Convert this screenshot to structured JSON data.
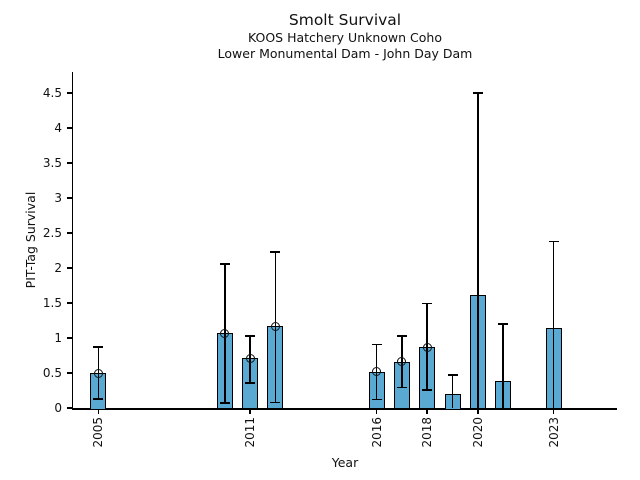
{
  "chart_data": {
    "type": "bar",
    "title": "Smolt Survival",
    "subtitle1": "KOOS Hatchery Unknown Coho",
    "subtitle2": "Lower Monumental Dam - John Day Dam",
    "xlabel": "Year",
    "ylabel": "PIT-Tag Survival",
    "xlim": [
      2004,
      2025.5
    ],
    "ylim": [
      0,
      4.8
    ],
    "yticks": [
      0,
      0.5,
      1,
      1.5,
      2,
      2.5,
      3,
      3.5,
      4,
      4.5
    ],
    "xticks": [
      2005,
      2011,
      2016,
      2018,
      2020,
      2023
    ],
    "grid": false,
    "legend": false,
    "bar_color": "#5AA9D2",
    "bar_edge_color": "#000000",
    "error_bar_color": "#000000",
    "series": [
      {
        "name": "PIT-Tag Survival",
        "points": [
          {
            "year": 2005,
            "value": 0.5,
            "ci_low": 0.13,
            "ci_high": 0.87,
            "marker": true
          },
          {
            "year": 2010,
            "value": 1.07,
            "ci_low": 0.07,
            "ci_high": 2.06,
            "marker": true
          },
          {
            "year": 2011,
            "value": 0.71,
            "ci_low": 0.36,
            "ci_high": 1.03,
            "marker": true
          },
          {
            "year": 2012,
            "value": 1.17,
            "ci_low": 0.08,
            "ci_high": 2.23,
            "marker": true
          },
          {
            "year": 2016,
            "value": 0.52,
            "ci_low": 0.12,
            "ci_high": 0.91,
            "marker": true
          },
          {
            "year": 2017,
            "value": 0.66,
            "ci_low": 0.29,
            "ci_high": 1.03,
            "marker": true
          },
          {
            "year": 2018,
            "value": 0.87,
            "ci_low": 0.26,
            "ci_high": 1.49,
            "marker": true
          },
          {
            "year": 2019,
            "value": 0.2,
            "ci_low": 0.0,
            "ci_high": 0.47,
            "marker": false
          },
          {
            "year": 2020,
            "value": 1.61,
            "ci_low": 0.0,
            "ci_high": 4.5,
            "marker": false
          },
          {
            "year": 2021,
            "value": 0.39,
            "ci_low": 0.0,
            "ci_high": 1.2,
            "marker": false
          },
          {
            "year": 2023,
            "value": 1.14,
            "ci_low": 0.0,
            "ci_high": 2.38,
            "marker": false
          }
        ]
      }
    ]
  }
}
